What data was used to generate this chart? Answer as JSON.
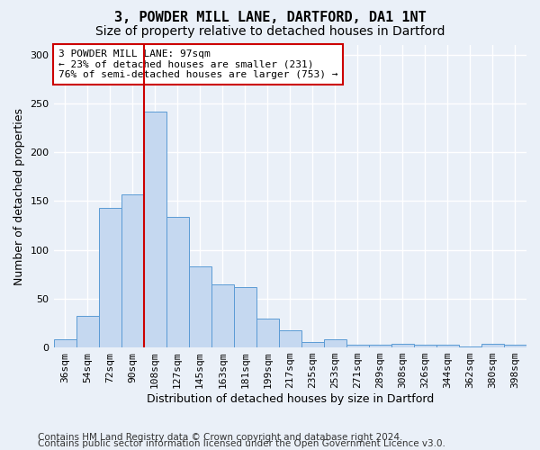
{
  "title": "3, POWDER MILL LANE, DARTFORD, DA1 1NT",
  "subtitle": "Size of property relative to detached houses in Dartford",
  "xlabel": "Distribution of detached houses by size in Dartford",
  "ylabel": "Number of detached properties",
  "footer_line1": "Contains HM Land Registry data © Crown copyright and database right 2024.",
  "footer_line2": "Contains public sector information licensed under the Open Government Licence v3.0.",
  "bar_labels": [
    "36sqm",
    "54sqm",
    "72sqm",
    "90sqm",
    "108sqm",
    "127sqm",
    "145sqm",
    "163sqm",
    "181sqm",
    "199sqm",
    "217sqm",
    "235sqm",
    "253sqm",
    "271sqm",
    "289sqm",
    "308sqm",
    "326sqm",
    "344sqm",
    "362sqm",
    "380sqm",
    "398sqm"
  ],
  "bar_values": [
    8,
    32,
    143,
    157,
    242,
    134,
    83,
    65,
    62,
    30,
    18,
    6,
    8,
    3,
    3,
    4,
    3,
    3,
    1,
    4,
    3
  ],
  "bar_color": "#c5d8f0",
  "bar_edge_color": "#5b9bd5",
  "vline_pos": 3.5,
  "vline_color": "#cc0000",
  "annotation_text": "3 POWDER MILL LANE: 97sqm\n← 23% of detached houses are smaller (231)\n76% of semi-detached houses are larger (753) →",
  "annotation_box_color": "#ffffff",
  "annotation_box_edge": "#cc0000",
  "ylim": [
    0,
    310
  ],
  "yticks": [
    0,
    50,
    100,
    150,
    200,
    250,
    300
  ],
  "bg_color": "#eaf0f8",
  "grid_color": "#ffffff",
  "title_fontsize": 11,
  "subtitle_fontsize": 10,
  "ylabel_fontsize": 9,
  "xlabel_fontsize": 9,
  "tick_fontsize": 8,
  "annot_fontsize": 8,
  "footer_fontsize": 7.5
}
